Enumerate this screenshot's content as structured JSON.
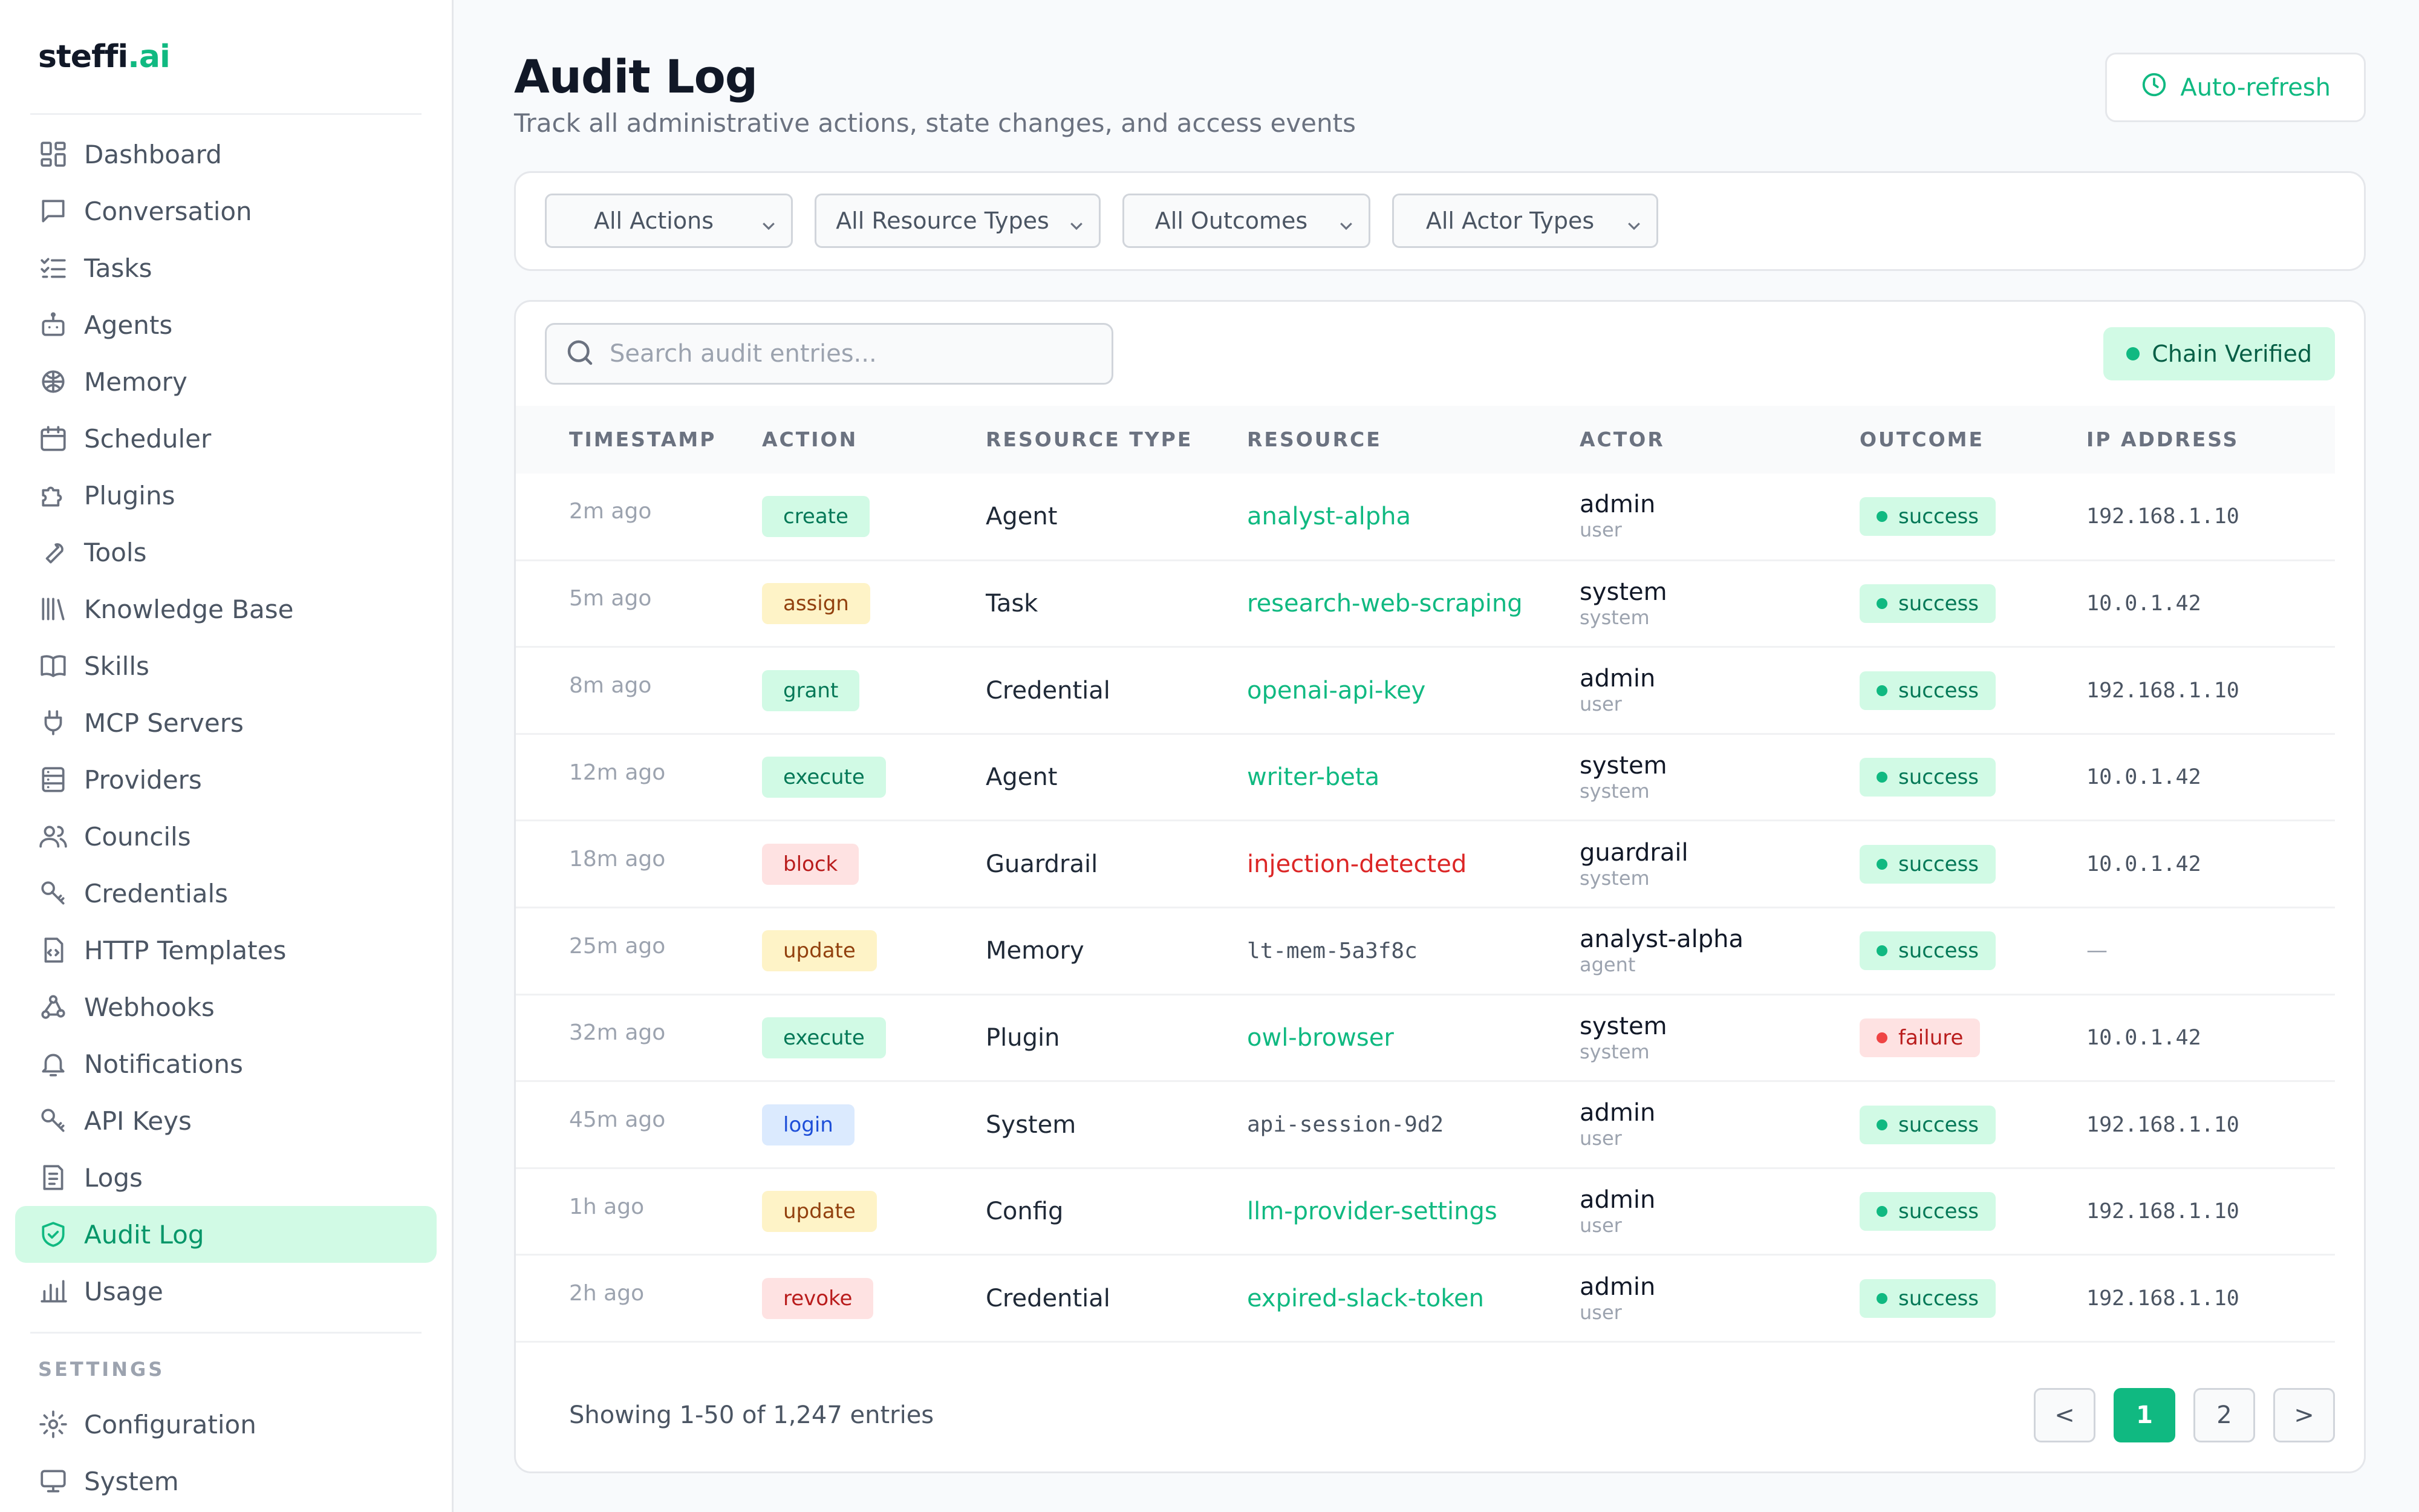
{
  "brand": {
    "name": "steffi",
    "suffix": ".ai"
  },
  "sidebar": {
    "items": [
      {
        "label": "Dashboard",
        "icon": "dashboard-icon"
      },
      {
        "label": "Conversation",
        "icon": "chat-icon"
      },
      {
        "label": "Tasks",
        "icon": "tasks-icon"
      },
      {
        "label": "Agents",
        "icon": "robot-icon"
      },
      {
        "label": "Memory",
        "icon": "brain-icon"
      },
      {
        "label": "Scheduler",
        "icon": "calendar-icon"
      },
      {
        "label": "Plugins",
        "icon": "puzzle-icon"
      },
      {
        "label": "Tools",
        "icon": "wrench-icon"
      },
      {
        "label": "Knowledge Base",
        "icon": "library-icon"
      },
      {
        "label": "Skills",
        "icon": "book-icon"
      },
      {
        "label": "MCP Servers",
        "icon": "plug-icon"
      },
      {
        "label": "Providers",
        "icon": "server-icon"
      },
      {
        "label": "Councils",
        "icon": "users-icon"
      },
      {
        "label": "Credentials",
        "icon": "key-icon"
      },
      {
        "label": "HTTP Templates",
        "icon": "file-code-icon"
      },
      {
        "label": "Webhooks",
        "icon": "webhook-icon"
      },
      {
        "label": "Notifications",
        "icon": "bell-icon"
      },
      {
        "label": "API Keys",
        "icon": "key-icon"
      },
      {
        "label": "Logs",
        "icon": "logs-icon"
      },
      {
        "label": "Audit Log",
        "icon": "shield-check-icon",
        "active": true
      },
      {
        "label": "Usage",
        "icon": "bar-chart-icon"
      }
    ],
    "settings_label": "SETTINGS",
    "settings_items": [
      {
        "label": "Configuration",
        "icon": "gear-icon"
      },
      {
        "label": "System",
        "icon": "monitor-icon"
      }
    ]
  },
  "header": {
    "title": "Audit Log",
    "subtitle": "Track all administrative actions, state changes, and access events",
    "refresh_label": "Auto-refresh"
  },
  "filters": {
    "actions": "All Actions",
    "resource_types": "All Resource Types",
    "outcomes": "All Outcomes",
    "actor_types": "All Actor Types"
  },
  "search": {
    "placeholder": "Search audit entries..."
  },
  "chain_status": "Chain Verified",
  "table": {
    "columns": [
      "TIMESTAMP",
      "ACTION",
      "RESOURCE TYPE",
      "RESOURCE",
      "ACTOR",
      "OUTCOME",
      "IP ADDRESS"
    ],
    "rows": [
      {
        "timestamp": "2m ago",
        "action": "create",
        "action_color": "green",
        "resource_type": "Agent",
        "resource": "analyst-alpha",
        "resource_style": "link",
        "actor": "admin",
        "actor_type": "user",
        "outcome": "success",
        "ip": "192.168.1.10"
      },
      {
        "timestamp": "5m ago",
        "action": "assign",
        "action_color": "yellow",
        "resource_type": "Task",
        "resource": "research-web-scraping",
        "resource_style": "link",
        "actor": "system",
        "actor_type": "system",
        "outcome": "success",
        "ip": "10.0.1.42"
      },
      {
        "timestamp": "8m ago",
        "action": "grant",
        "action_color": "green",
        "resource_type": "Credential",
        "resource": "openai-api-key",
        "resource_style": "link",
        "actor": "admin",
        "actor_type": "user",
        "outcome": "success",
        "ip": "192.168.1.10"
      },
      {
        "timestamp": "12m ago",
        "action": "execute",
        "action_color": "green",
        "resource_type": "Agent",
        "resource": "writer-beta",
        "resource_style": "link",
        "actor": "system",
        "actor_type": "system",
        "outcome": "success",
        "ip": "10.0.1.42"
      },
      {
        "timestamp": "18m ago",
        "action": "block",
        "action_color": "red",
        "resource_type": "Guardrail",
        "resource": "injection-detected",
        "resource_style": "danger",
        "actor": "guardrail",
        "actor_type": "system",
        "outcome": "success",
        "ip": "10.0.1.42"
      },
      {
        "timestamp": "25m ago",
        "action": "update",
        "action_color": "yellow",
        "resource_type": "Memory",
        "resource": "lt-mem-5a3f8c",
        "resource_style": "mono",
        "actor": "analyst-alpha",
        "actor_type": "agent",
        "outcome": "success",
        "ip": "—"
      },
      {
        "timestamp": "32m ago",
        "action": "execute",
        "action_color": "green",
        "resource_type": "Plugin",
        "resource": "owl-browser",
        "resource_style": "link",
        "actor": "system",
        "actor_type": "system",
        "outcome": "failure",
        "ip": "10.0.1.42"
      },
      {
        "timestamp": "45m ago",
        "action": "login",
        "action_color": "blue",
        "resource_type": "System",
        "resource": "api-session-9d2",
        "resource_style": "mono",
        "actor": "admin",
        "actor_type": "user",
        "outcome": "success",
        "ip": "192.168.1.10"
      },
      {
        "timestamp": "1h ago",
        "action": "update",
        "action_color": "yellow",
        "resource_type": "Config",
        "resource": "llm-provider-settings",
        "resource_style": "link",
        "actor": "admin",
        "actor_type": "user",
        "outcome": "success",
        "ip": "192.168.1.10"
      },
      {
        "timestamp": "2h ago",
        "action": "revoke",
        "action_color": "red",
        "resource_type": "Credential",
        "resource": "expired-slack-token",
        "resource_style": "link",
        "actor": "admin",
        "actor_type": "user",
        "outcome": "success",
        "ip": "192.168.1.10"
      }
    ]
  },
  "pagination": {
    "summary": "Showing 1-50 of 1,247 entries",
    "prev": "<",
    "next": ">",
    "pages": [
      "1",
      "2"
    ],
    "current": "1"
  },
  "colors": {
    "accent": "#10b981",
    "active_bg": "#d1fae5",
    "danger": "#dc2626"
  }
}
